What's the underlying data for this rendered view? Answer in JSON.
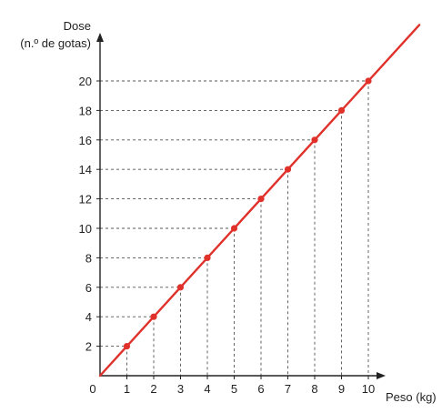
{
  "chart_data": {
    "type": "line",
    "title": "",
    "xlabel": "Peso (kg)",
    "ylabel_line1": "Dose",
    "ylabel_line2": "(n.º de gotas)",
    "origin_label": "0",
    "xlim": [
      0,
      12
    ],
    "ylim": [
      0,
      24
    ],
    "x_ticks": [
      1,
      2,
      3,
      4,
      5,
      6,
      7,
      8,
      9,
      10
    ],
    "y_ticks": [
      2,
      4,
      6,
      8,
      10,
      12,
      14,
      16,
      18,
      20
    ],
    "grid": "dashed guides from each point to both axes",
    "line_color": "#e0312b",
    "point_color": "#e0312b",
    "line": {
      "x_start": 0,
      "y_start": 0,
      "x_end": 11.9,
      "y_end": 23.8
    },
    "series": [
      {
        "x": [
          1,
          2,
          3,
          4,
          5,
          6,
          7,
          8,
          9,
          10
        ],
        "y": [
          2,
          4,
          6,
          8,
          10,
          12,
          14,
          16,
          18,
          20
        ]
      }
    ]
  }
}
